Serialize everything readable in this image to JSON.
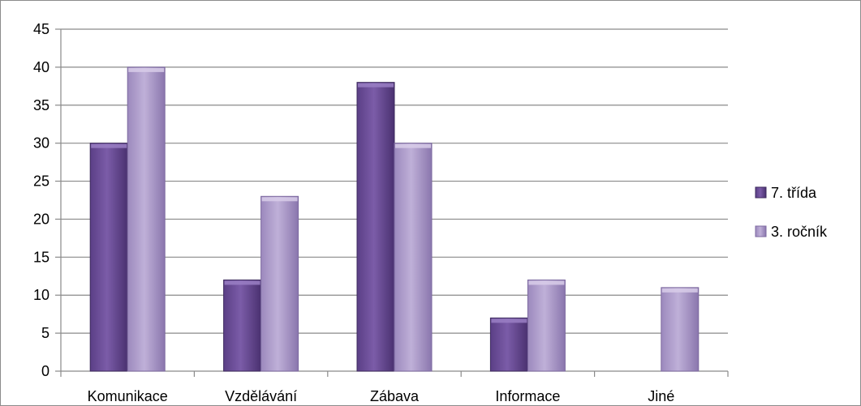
{
  "chart_data": {
    "type": "bar",
    "title": "",
    "xlabel": "",
    "ylabel": "",
    "categories": [
      "Komunikace",
      "Vzdělávání",
      "Zábava",
      "Informace",
      "Jiné"
    ],
    "series": [
      {
        "name": "7. třída",
        "values": [
          30,
          12,
          38,
          7,
          0
        ],
        "color": "#7a5aa6"
      },
      {
        "name": "3. ročník",
        "values": [
          40,
          23,
          30,
          12,
          11
        ],
        "color": "#b4a3cf"
      }
    ],
    "ylim": [
      0,
      45
    ],
    "yticks": [
      "0",
      "5",
      "10",
      "15",
      "20",
      "25",
      "30",
      "35",
      "40",
      "45"
    ],
    "grid": true,
    "legend_position": "right"
  }
}
